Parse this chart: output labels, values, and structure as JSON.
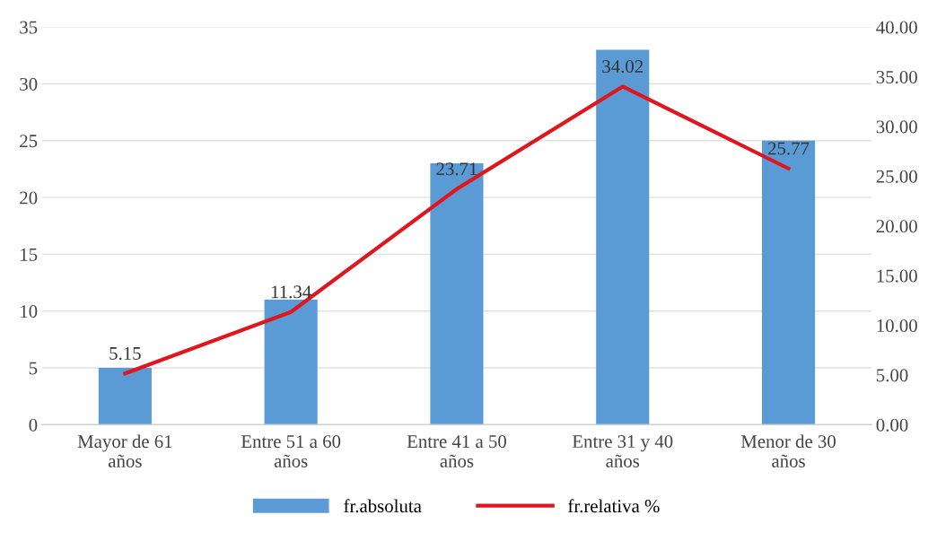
{
  "chart_data": {
    "type": "bar",
    "categories": [
      "Mayor de 61\naños",
      "Entre 51 a 60\naños",
      "Entre 41 a 50\naños",
      "Entre 31 y 40\naños",
      "Menor de 30\naños"
    ],
    "series": [
      {
        "name": "fr.absoluta",
        "color": "#5b9bd5",
        "values": [
          5,
          11,
          23,
          33,
          25
        ]
      },
      {
        "name": "fr.relativa %",
        "type": "line",
        "axis": "y2",
        "color": "#e0161e",
        "values": [
          5.15,
          11.34,
          23.71,
          34.02,
          25.77
        ],
        "data_labels": true
      }
    ],
    "ylim": [
      0,
      35
    ],
    "yticks": [
      0,
      5,
      10,
      15,
      20,
      25,
      30,
      35
    ],
    "y2lim": [
      0,
      40
    ],
    "y2ticks": [
      {
        "value": 0,
        "label": "0.00"
      },
      {
        "value": 5,
        "label": "5.00"
      },
      {
        "value": 10,
        "label": "10.00"
      },
      {
        "value": 15,
        "label": "15.00"
      },
      {
        "value": 20,
        "label": "20.00"
      },
      {
        "value": 25,
        "label": "25.00"
      },
      {
        "value": 30,
        "label": "30.00"
      },
      {
        "value": 35,
        "label": "35.00"
      },
      {
        "value": 40,
        "label": "40.00"
      }
    ],
    "grid": "y",
    "legend": "bottom",
    "marker": "none",
    "line_style": "solid"
  }
}
